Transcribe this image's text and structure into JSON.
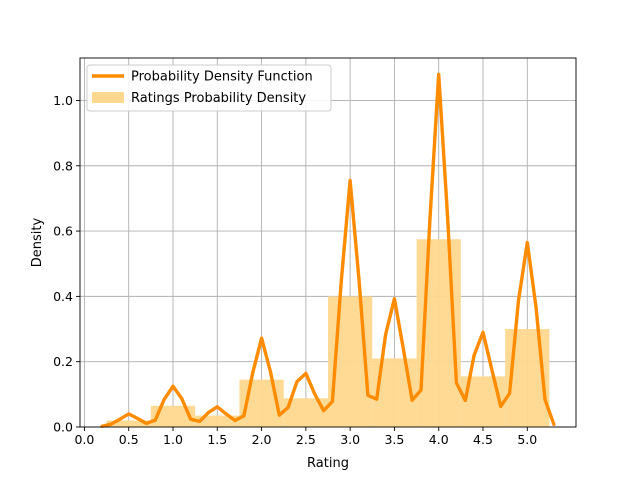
{
  "chart_data": {
    "type": "bar",
    "title": "",
    "xlabel": "Rating",
    "ylabel": "Density",
    "xlim": [
      -0.05,
      5.55
    ],
    "ylim": [
      0,
      1.13
    ],
    "xticks": [
      0.0,
      0.5,
      1.0,
      1.5,
      2.0,
      2.5,
      3.0,
      3.5,
      4.0,
      4.5,
      5.0
    ],
    "xtick_labels": [
      "0.0",
      "0.5",
      "1.0",
      "1.5",
      "2.0",
      "2.5",
      "3.0",
      "3.5",
      "4.0",
      "4.5",
      "5.0"
    ],
    "yticks": [
      0.0,
      0.2,
      0.4,
      0.6,
      0.8,
      1.0
    ],
    "ytick_labels": [
      "0.0",
      "0.2",
      "0.4",
      "0.6",
      "0.8",
      "1.0"
    ],
    "grid": true,
    "legend_position": "top-left",
    "histogram": {
      "name": "Ratings Probability Density",
      "color": "#ffd88f",
      "bin_width": 0.5,
      "bin_starts": [
        0.25,
        0.75,
        1.25,
        1.75,
        2.25,
        2.75,
        3.25,
        3.75,
        4.25,
        4.75
      ],
      "values": [
        0.02,
        0.065,
        0.035,
        0.145,
        0.088,
        0.4,
        0.21,
        0.575,
        0.155,
        0.3
      ]
    },
    "density_curve": {
      "name": "Probability Density Function",
      "color": "#ff8c00",
      "x": [
        0.2,
        0.3,
        0.4,
        0.5,
        0.6,
        0.7,
        0.8,
        0.9,
        1.0,
        1.1,
        1.2,
        1.3,
        1.4,
        1.5,
        1.6,
        1.7,
        1.8,
        1.9,
        2.0,
        2.1,
        2.2,
        2.3,
        2.4,
        2.5,
        2.6,
        2.7,
        2.8,
        2.9,
        3.0,
        3.1,
        3.2,
        3.3,
        3.4,
        3.5,
        3.6,
        3.7,
        3.8,
        3.9,
        4.0,
        4.1,
        4.2,
        4.3,
        4.4,
        4.5,
        4.6,
        4.7,
        4.8,
        4.9,
        5.0,
        5.1,
        5.2,
        5.3
      ],
      "y": [
        0.002,
        0.009,
        0.024,
        0.04,
        0.026,
        0.011,
        0.021,
        0.084,
        0.125,
        0.086,
        0.024,
        0.017,
        0.044,
        0.062,
        0.04,
        0.02,
        0.034,
        0.166,
        0.272,
        0.17,
        0.036,
        0.06,
        0.139,
        0.164,
        0.101,
        0.05,
        0.078,
        0.447,
        0.755,
        0.451,
        0.097,
        0.085,
        0.283,
        0.393,
        0.24,
        0.082,
        0.113,
        0.634,
        1.08,
        0.643,
        0.135,
        0.081,
        0.22,
        0.29,
        0.175,
        0.063,
        0.103,
        0.385,
        0.565,
        0.365,
        0.084,
        0.008
      ]
    }
  }
}
